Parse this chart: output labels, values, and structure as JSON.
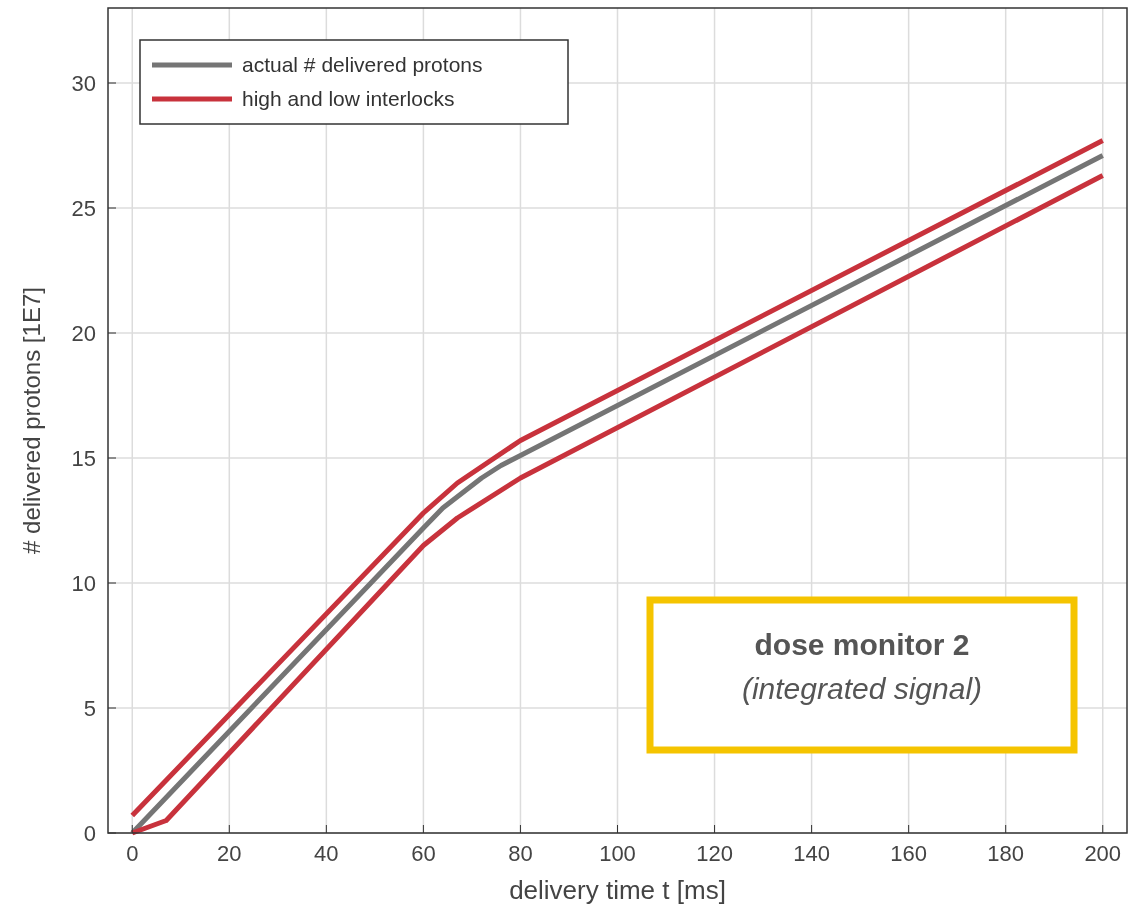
{
  "chart_data": {
    "type": "line",
    "xlabel": "delivery time t [ms]",
    "ylabel": "# delivered protons [1E7]",
    "xlim": [
      -5,
      205
    ],
    "ylim": [
      0,
      33
    ],
    "xticks": [
      0,
      20,
      40,
      60,
      80,
      100,
      120,
      140,
      160,
      180,
      200
    ],
    "yticks": [
      0,
      5,
      10,
      15,
      20,
      25,
      30
    ],
    "grid": true,
    "legend": "top left",
    "line_style": "solid",
    "marker": "none",
    "series": [
      {
        "name": "actual # delivered protons",
        "color": "#757575",
        "x": [
          0,
          60,
          64,
          68,
          72,
          76,
          80,
          200
        ],
        "values": [
          0,
          12.2,
          13.0,
          13.6,
          14.2,
          14.7,
          15.1,
          27.1
        ]
      },
      {
        "name": "high and low interlocks",
        "color": "#c8323c",
        "x": [
          0,
          60,
          67,
          80,
          200
        ],
        "values": [
          0.7,
          12.8,
          14.0,
          15.7,
          27.7
        ]
      },
      {
        "color": "#c8323c",
        "x": [
          0,
          7,
          60,
          67,
          80,
          200
        ],
        "values": [
          0,
          0.5,
          11.5,
          12.6,
          14.2,
          26.3
        ]
      }
    ],
    "annotations": [
      "dose monitor 2",
      "(integrated signal)"
    ]
  }
}
